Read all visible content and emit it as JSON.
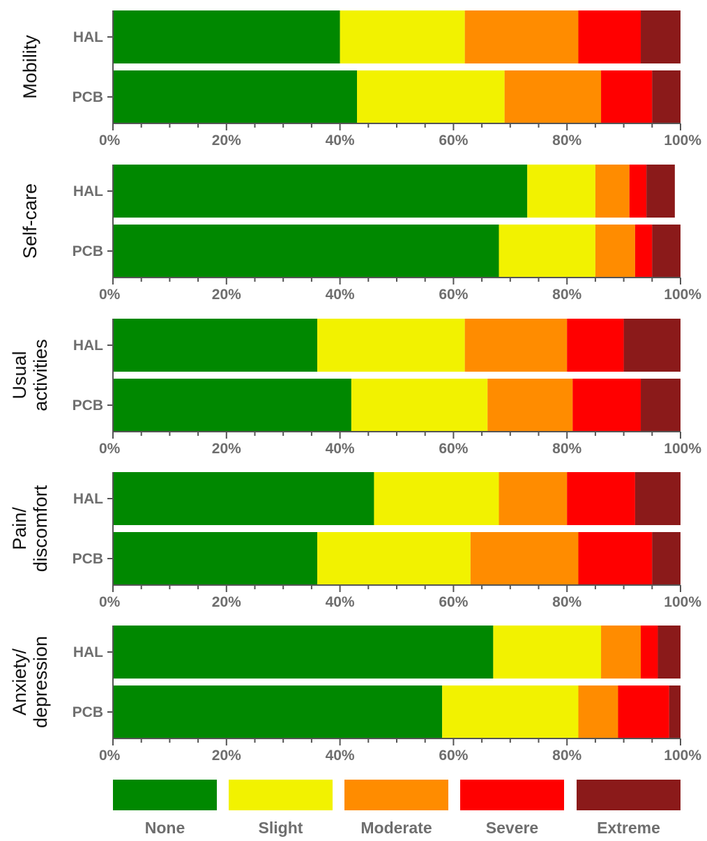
{
  "chart_data": {
    "type": "bar",
    "orientation": "horizontal",
    "stacked": "percent",
    "xlim": [
      0,
      100
    ],
    "x_ticks": [
      "0%",
      "20%",
      "40%",
      "60%",
      "80%",
      "100%"
    ],
    "levels": [
      "None",
      "Slight",
      "Moderate",
      "Severe",
      "Extreme"
    ],
    "colors": [
      "#008800",
      "#f2f200",
      "#ff8c00",
      "#ff0000",
      "#8b1a1a"
    ],
    "legend_position": "bottom",
    "panels": [
      {
        "label_lines": [
          "Mobility"
        ],
        "categories": [
          "HAL",
          "PCB"
        ],
        "values": [
          [
            40,
            22,
            20,
            11,
            7
          ],
          [
            43,
            26,
            17,
            9,
            5
          ]
        ]
      },
      {
        "label_lines": [
          "Self-care"
        ],
        "categories": [
          "HAL",
          "PCB"
        ],
        "values": [
          [
            73,
            12,
            6,
            3,
            5
          ],
          [
            68,
            17,
            7,
            3,
            5
          ]
        ]
      },
      {
        "label_lines": [
          "Usual",
          "activities"
        ],
        "categories": [
          "HAL",
          "PCB"
        ],
        "values": [
          [
            36,
            26,
            18,
            10,
            10
          ],
          [
            42,
            24,
            15,
            12,
            7
          ]
        ]
      },
      {
        "label_lines": [
          "Pain/",
          "discomfort"
        ],
        "categories": [
          "HAL",
          "PCB"
        ],
        "values": [
          [
            46,
            22,
            12,
            12,
            8
          ],
          [
            36,
            27,
            19,
            13,
            5
          ]
        ]
      },
      {
        "label_lines": [
          "Anxiety/",
          "depression"
        ],
        "categories": [
          "HAL",
          "PCB"
        ],
        "values": [
          [
            67,
            19,
            7,
            3,
            4
          ],
          [
            58,
            24,
            7,
            9,
            2
          ]
        ]
      }
    ]
  }
}
